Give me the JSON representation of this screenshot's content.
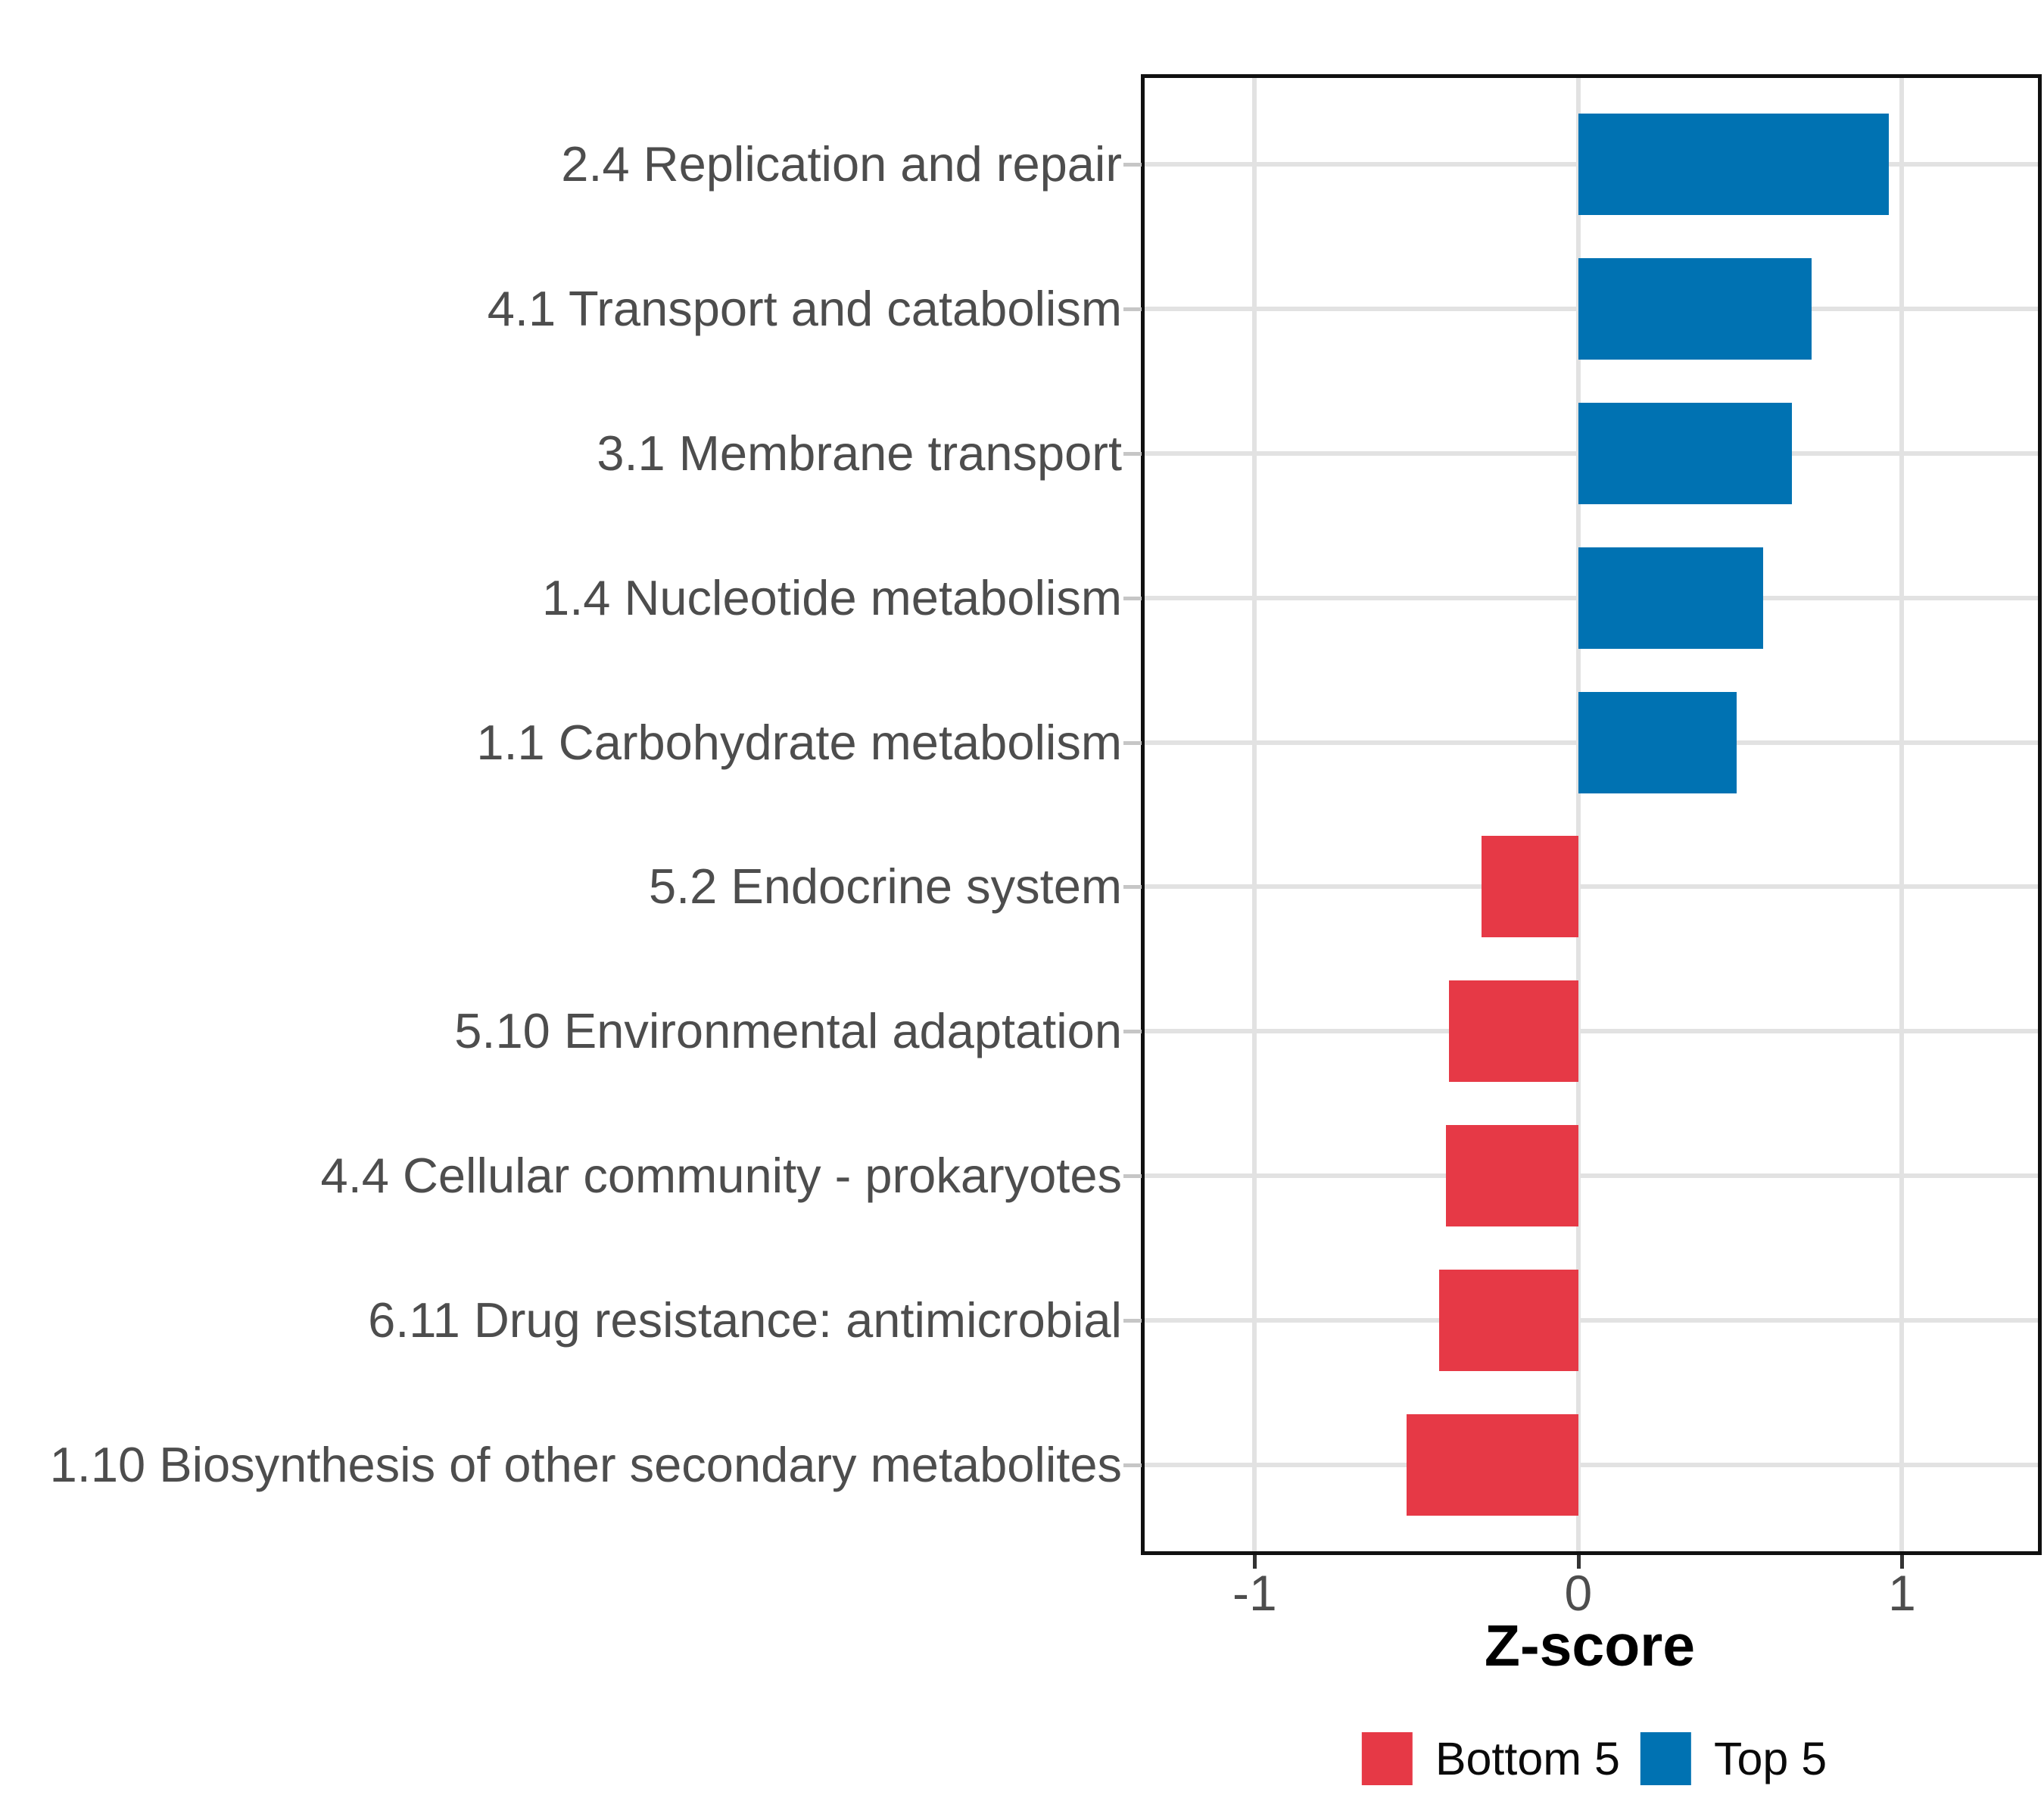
{
  "chart_data": {
    "type": "bar",
    "orientation": "horizontal",
    "title": "",
    "xlabel": "Z-score",
    "ylabel": "",
    "categories": [
      "2.4 Replication and repair",
      "4.1 Transport and catabolism",
      "3.1 Membrane transport",
      "1.4 Nucleotide metabolism",
      "1.1 Carbohydrate metabolism",
      "5.2 Endocrine system",
      "5.10 Environmental adaptation",
      "4.4 Cellular community - prokaryotes",
      "6.11 Drug resistance: antimicrobial",
      "1.10 Biosynthesis of other secondary metabolites"
    ],
    "values": [
      0.96,
      0.72,
      0.66,
      0.57,
      0.49,
      -0.3,
      -0.4,
      -0.41,
      -0.43,
      -0.53
    ],
    "groups": [
      "Top 5",
      "Top 5",
      "Top 5",
      "Top 5",
      "Top 5",
      "Bottom 5",
      "Bottom 5",
      "Bottom 5",
      "Bottom 5",
      "Bottom 5"
    ],
    "x_ticks": [
      -1,
      0,
      1
    ],
    "x_tick_labels": [
      "-1",
      "0",
      "1"
    ],
    "xlim": [
      -1.34,
      1.42
    ],
    "grid": "major-gridlines-only",
    "panel_border": true,
    "legend": {
      "position": "bottom",
      "entries": [
        {
          "label": "Bottom 5",
          "color": "#E63946"
        },
        {
          "label": "Top 5",
          "color": "#0072B2"
        }
      ]
    },
    "colors": {
      "top5_blue": "#0072B2",
      "bottom5_red": "#E63946",
      "gridline": "#e2e2e2",
      "axis_text": "#4d4d4d",
      "panel_border": "#101010"
    }
  }
}
